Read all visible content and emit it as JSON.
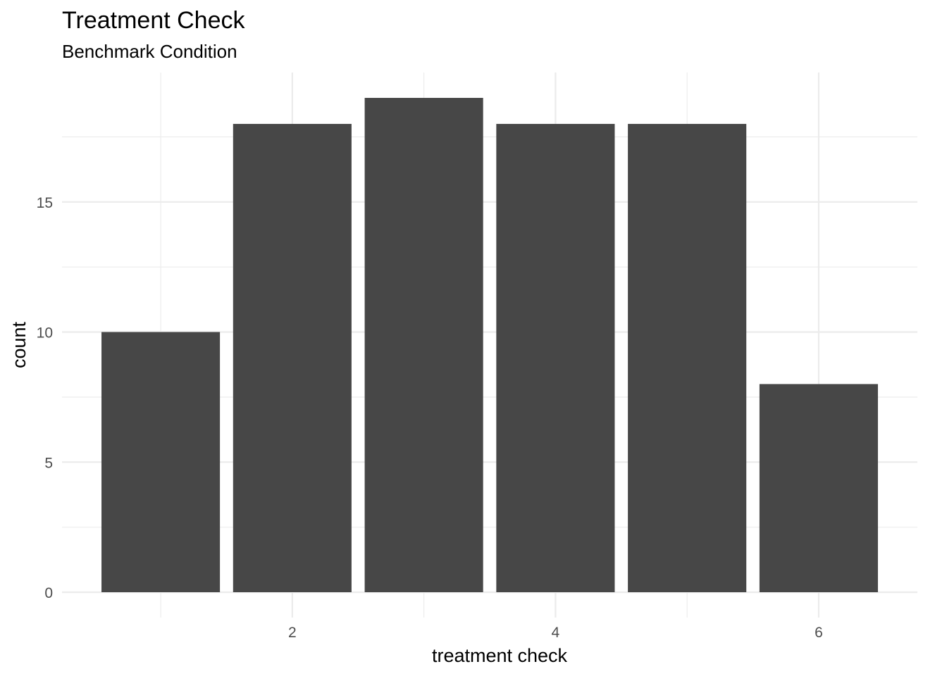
{
  "chart_data": {
    "type": "bar",
    "title": "Treatment Check",
    "subtitle": "Benchmark Condition",
    "xlabel": "treatment check",
    "ylabel": "count",
    "x": [
      1,
      2,
      3,
      4,
      5,
      6
    ],
    "values": [
      10,
      18,
      19,
      18,
      18,
      8
    ],
    "xlim": [
      0.25,
      6.75
    ],
    "ylim": [
      0,
      19.95
    ],
    "xticks": [
      2,
      4,
      6
    ],
    "xtick_labels": [
      "2",
      "4",
      "6"
    ],
    "yticks": [
      0,
      5,
      10,
      15
    ],
    "ytick_labels": [
      "0",
      "5",
      "10",
      "15"
    ],
    "grid": true,
    "legend": "none",
    "bar_color": "#474747",
    "grid_color": "#ebebeb"
  }
}
